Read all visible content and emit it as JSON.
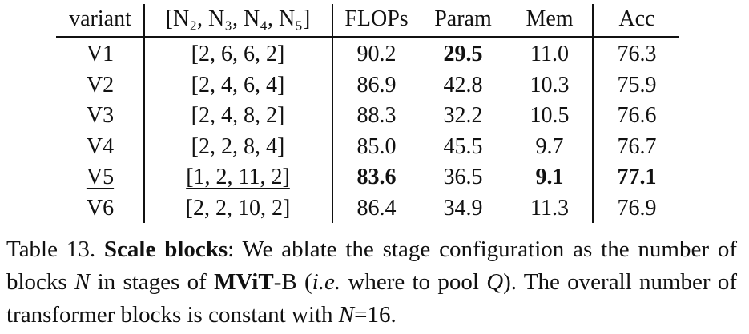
{
  "table": {
    "header": [
      "variant",
      "[N₂, N₃, N₄, N₅]",
      "FLOPs",
      "Param",
      "Mem",
      "Acc"
    ],
    "rows": [
      [
        "V1",
        "[2, 6, 6, 2]",
        "90.2",
        {
          "text": "29.5",
          "bold": true
        },
        "11.0",
        "76.3"
      ],
      [
        "V2",
        "[2, 4, 6, 4]",
        "86.9",
        "42.8",
        "10.3",
        "75.9"
      ],
      [
        "V3",
        "[2, 4, 8, 2]",
        "88.3",
        "32.2",
        "10.5",
        "76.6"
      ],
      [
        "V4",
        "[2, 2, 8, 4]",
        "85.0",
        "45.5",
        "9.7",
        "76.7"
      ],
      [
        {
          "text": "V5",
          "underline": true
        },
        {
          "text": "[1, 2, 11, 2]",
          "underline": true
        },
        {
          "text": "83.6",
          "bold": true
        },
        "36.5",
        {
          "text": "9.1",
          "bold": true
        },
        {
          "text": "77.1",
          "bold": true
        }
      ],
      [
        "V6",
        "[2, 2, 10, 2]",
        "86.4",
        "34.9",
        "11.3",
        "76.9"
      ]
    ]
  },
  "caption": [
    {
      "text": "Table 13. ",
      "style": "normal"
    },
    {
      "text": "Scale blocks",
      "style": "bold"
    },
    {
      "text": ": We ablate the stage configuration as the number of blocks ",
      "style": "normal"
    },
    {
      "text": "N",
      "style": "italic"
    },
    {
      "text": " in stages of ",
      "style": "normal"
    },
    {
      "text": "MViT",
      "style": "bold"
    },
    {
      "text": "-B (",
      "style": "normal"
    },
    {
      "text": "i.e.",
      "style": "italic"
    },
    {
      "text": " where to pool ",
      "style": "normal"
    },
    {
      "text": "Q",
      "style": "italic"
    },
    {
      "text": "). The overall number of transformer blocks is constant with ",
      "style": "normal"
    },
    {
      "text": "N",
      "style": "italic"
    },
    {
      "text": "=16.",
      "style": "normal"
    }
  ]
}
